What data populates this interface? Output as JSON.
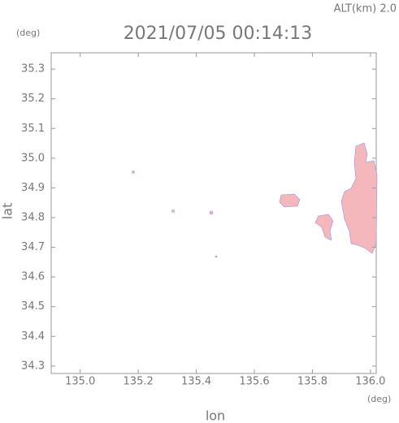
{
  "alt_label": "ALT(km) 2.0",
  "chart_data": {
    "type": "map",
    "title": "2021/07/05 00:14:13",
    "x_unit": "(deg)",
    "y_unit": "(deg)",
    "xlabel": "lon",
    "ylabel": "lat",
    "xlim": [
      134.9,
      136.02
    ],
    "ylim": [
      34.275,
      35.355
    ],
    "xticks": [
      {
        "value": 135,
        "label": "135.0"
      },
      135.2,
      135.4,
      135.6,
      135.8,
      {
        "value": 136,
        "label": "136.0"
      }
    ],
    "yticks": [
      34.3,
      34.4,
      34.5,
      34.6,
      34.7,
      34.8,
      34.9,
      {
        "value": 35,
        "label": "35.0"
      },
      35.1,
      35.2,
      35.3
    ]
  }
}
